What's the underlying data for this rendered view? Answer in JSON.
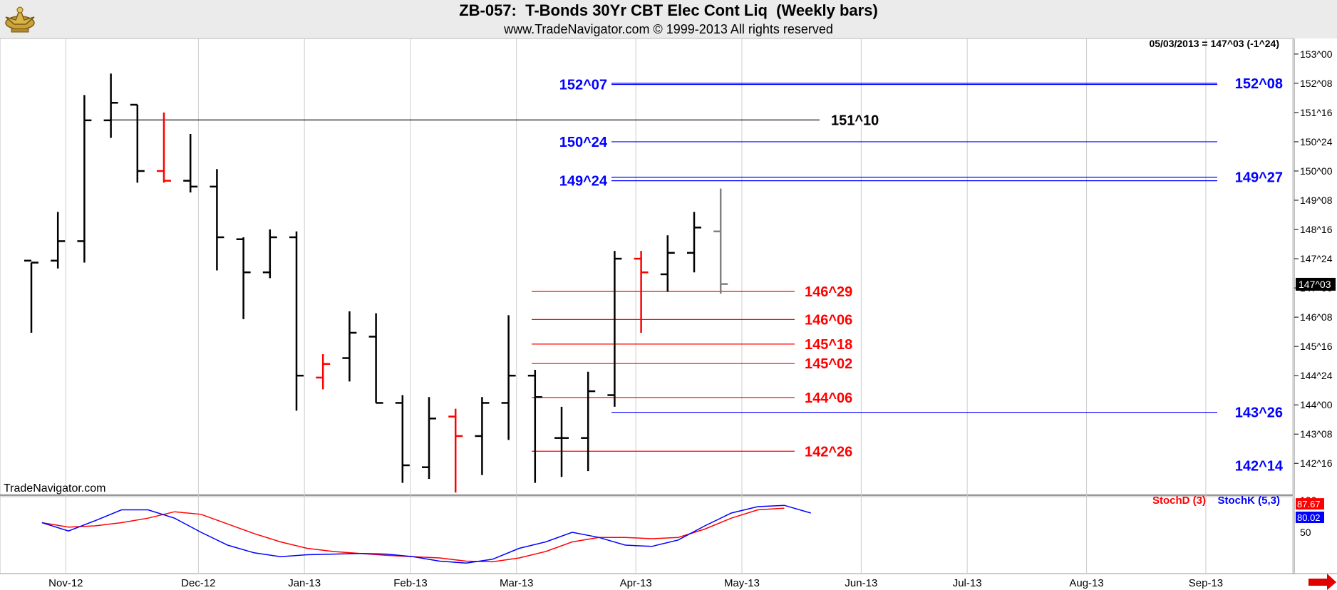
{
  "header": {
    "title": "ZB-057:  T-Bonds 30Yr CBT Elec Cont Liq  (Weekly bars)",
    "subtitle": "www.TradeNavigator.com © 1999-2013 All rights reserved",
    "watermark": "TradeNavigator.com",
    "logo_icon": "eagle-logo-icon"
  },
  "colors": {
    "bar_up": "#000000",
    "bar_down": "#ff0000",
    "bar_current": "#808080",
    "blue_level": "#0000ff",
    "red_level": "#ff0000",
    "black_level": "#000000",
    "stoch_d": "#ff0000",
    "stoch_k": "#0000ff",
    "nav_arrow": "#e00000"
  },
  "chart_data": [
    {
      "type": "ohlc",
      "title": "ZB-057:  T-Bonds 30Yr CBT Elec Cont Liq  (Weekly bars)",
      "info_line": "05/03/2013 = 147^03 (-1^24)",
      "last_price_label": "147^03",
      "last_price_value": 147.094,
      "y_range": [
        141.7,
        153.4
      ],
      "y_ticks": [
        {
          "label": "153^00",
          "value": 153.0
        },
        {
          "label": "152^08",
          "value": 152.25
        },
        {
          "label": "151^16",
          "value": 151.5
        },
        {
          "label": "150^24",
          "value": 150.75
        },
        {
          "label": "150^00",
          "value": 150.0
        },
        {
          "label": "149^08",
          "value": 149.25
        },
        {
          "label": "148^16",
          "value": 148.5
        },
        {
          "label": "147^24",
          "value": 147.75
        },
        {
          "label": "147^00",
          "value": 147.0
        },
        {
          "label": "146^08",
          "value": 146.25
        },
        {
          "label": "145^16",
          "value": 145.5
        },
        {
          "label": "144^24",
          "value": 144.75
        },
        {
          "label": "144^00",
          "value": 144.0
        },
        {
          "label": "143^08",
          "value": 143.25
        },
        {
          "label": "142^16",
          "value": 142.5
        }
      ],
      "x_labels": [
        "Nov-12",
        "Dec-12",
        "Jan-13",
        "Feb-13",
        "Mar-13",
        "Apr-13",
        "May-13",
        "Jun-13",
        "Jul-13",
        "Aug-13",
        "Sep-13"
      ],
      "x_label_index": [
        1.3,
        6.3,
        10.3,
        14.3,
        18.3,
        22.8,
        26.8,
        31.3,
        35.3,
        39.8,
        44.3
      ],
      "bars": [
        {
          "date": "2012-10-26",
          "open": 147.7,
          "high": 147.65,
          "low": 145.85,
          "close": 147.65,
          "color": "up"
        },
        {
          "date": "2012-11-02",
          "open": 147.7,
          "high": 148.95,
          "low": 147.5,
          "close": 148.2,
          "color": "up"
        },
        {
          "date": "2012-11-09",
          "open": 148.2,
          "high": 151.95,
          "low": 147.65,
          "close": 151.3,
          "color": "up"
        },
        {
          "date": "2012-11-16",
          "open": 151.3,
          "high": 152.5,
          "low": 150.85,
          "close": 151.75,
          "color": "up"
        },
        {
          "date": "2012-11-23",
          "open": 151.7,
          "high": 151.7,
          "low": 149.7,
          "close": 150.0,
          "color": "up"
        },
        {
          "date": "2012-11-30",
          "open": 150.0,
          "high": 151.5,
          "low": 149.7,
          "close": 149.75,
          "color": "down"
        },
        {
          "date": "2012-12-07",
          "open": 149.75,
          "high": 150.95,
          "low": 149.45,
          "close": 149.6,
          "color": "up"
        },
        {
          "date": "2012-12-14",
          "open": 149.6,
          "high": 150.05,
          "low": 147.45,
          "close": 148.3,
          "color": "up"
        },
        {
          "date": "2012-12-21",
          "open": 148.25,
          "high": 148.3,
          "low": 146.2,
          "close": 147.4,
          "color": "up"
        },
        {
          "date": "2012-12-28",
          "open": 147.4,
          "high": 148.5,
          "low": 147.25,
          "close": 148.3,
          "color": "up"
        },
        {
          "date": "2013-01-04",
          "open": 148.3,
          "high": 148.45,
          "low": 143.85,
          "close": 144.75,
          "color": "up"
        },
        {
          "date": "2013-01-11",
          "open": 144.7,
          "high": 145.3,
          "low": 144.4,
          "close": 145.05,
          "color": "down"
        },
        {
          "date": "2013-01-18",
          "open": 145.2,
          "high": 146.4,
          "low": 144.6,
          "close": 145.85,
          "color": "up"
        },
        {
          "date": "2013-01-25",
          "open": 145.75,
          "high": 146.35,
          "low": 144.05,
          "close": 144.05,
          "color": "up"
        },
        {
          "date": "2013-02-01",
          "open": 144.05,
          "high": 144.25,
          "low": 142.0,
          "close": 142.45,
          "color": "up"
        },
        {
          "date": "2013-02-08",
          "open": 142.4,
          "high": 144.2,
          "low": 142.1,
          "close": 143.65,
          "color": "up"
        },
        {
          "date": "2013-02-15",
          "open": 143.7,
          "high": 143.9,
          "low": 141.75,
          "close": 143.2,
          "color": "down"
        },
        {
          "date": "2013-02-22",
          "open": 143.2,
          "high": 144.2,
          "low": 142.2,
          "close": 144.05,
          "color": "up"
        },
        {
          "date": "2013-03-01",
          "open": 144.05,
          "high": 146.3,
          "low": 143.1,
          "close": 144.75,
          "color": "up"
        },
        {
          "date": "2013-03-08",
          "open": 144.75,
          "high": 144.9,
          "low": 142.0,
          "close": 144.2,
          "color": "up"
        },
        {
          "date": "2013-03-15",
          "open": 143.15,
          "high": 143.95,
          "low": 142.15,
          "close": 143.15,
          "color": "up"
        },
        {
          "date": "2013-03-22",
          "open": 143.15,
          "high": 144.85,
          "low": 142.3,
          "close": 144.35,
          "color": "up"
        },
        {
          "date": "2013-03-29",
          "open": 144.25,
          "high": 147.95,
          "low": 143.95,
          "close": 147.75,
          "color": "up"
        },
        {
          "date": "2013-04-05",
          "open": 147.75,
          "high": 147.95,
          "low": 145.85,
          "close": 147.4,
          "color": "down"
        },
        {
          "date": "2013-04-12",
          "open": 147.35,
          "high": 148.35,
          "low": 146.9,
          "close": 147.9,
          "color": "up"
        },
        {
          "date": "2013-04-19",
          "open": 147.9,
          "high": 148.95,
          "low": 147.4,
          "close": 148.55,
          "color": "up"
        },
        {
          "date": "2013-04-26",
          "open": 148.45,
          "high": 149.55,
          "low": 146.85,
          "close": 147.1,
          "color": "current"
        }
      ],
      "levels": [
        {
          "label": "152^07",
          "value": 152.22,
          "color": "blue",
          "label_side": "left"
        },
        {
          "label": "152^08",
          "value": 152.25,
          "color": "blue",
          "label_side": "right"
        },
        {
          "label": "151^10",
          "value": 151.31,
          "color": "black",
          "label_side": "right-mid"
        },
        {
          "label": "150^24",
          "value": 150.75,
          "color": "blue",
          "label_side": "left"
        },
        {
          "label": "149^24",
          "value": 149.75,
          "color": "blue",
          "label_side": "left"
        },
        {
          "label": "149^27",
          "value": 149.84,
          "color": "blue",
          "label_side": "right"
        },
        {
          "label": "146^29",
          "value": 146.91,
          "color": "red",
          "label_side": "right-mid"
        },
        {
          "label": "146^06",
          "value": 146.19,
          "color": "red",
          "label_side": "right-mid"
        },
        {
          "label": "145^18",
          "value": 145.56,
          "color": "red",
          "label_side": "right-mid"
        },
        {
          "label": "145^02",
          "value": 145.06,
          "color": "red",
          "label_side": "right-mid"
        },
        {
          "label": "144^06",
          "value": 144.19,
          "color": "red",
          "label_side": "right-mid"
        },
        {
          "label": "143^26",
          "value": 143.81,
          "color": "blue",
          "label_side": "right"
        },
        {
          "label": "142^26",
          "value": 142.81,
          "color": "red",
          "label_side": "right-mid"
        },
        {
          "label": "142^14",
          "value": 142.44,
          "color": "blue",
          "label_side": "right"
        }
      ]
    },
    {
      "type": "line",
      "title": "",
      "y_range": [
        0,
        100
      ],
      "y_ticks": [
        {
          "label": "100",
          "value": 100
        },
        {
          "label": "50",
          "value": 50
        }
      ],
      "series": [
        {
          "name": "StochD (3)",
          "color": "red",
          "last_label": "87.67",
          "values": [
            65,
            58,
            60,
            65,
            72,
            82,
            78,
            63,
            48,
            35,
            25,
            20,
            17,
            14,
            12,
            10,
            5,
            4,
            10,
            20,
            35,
            42,
            42,
            40,
            42,
            55,
            72,
            85,
            87.67
          ]
        },
        {
          "name": "StochK (5,3)",
          "color": "blue",
          "last_label": "80.02",
          "values": [
            65,
            52,
            68,
            85,
            85,
            72,
            50,
            30,
            18,
            12,
            15,
            16,
            17,
            16,
            12,
            5,
            2,
            8,
            25,
            35,
            50,
            42,
            30,
            28,
            38,
            60,
            80,
            90,
            92,
            80.02
          ]
        }
      ],
      "series_x_start": 0.4
    }
  ]
}
